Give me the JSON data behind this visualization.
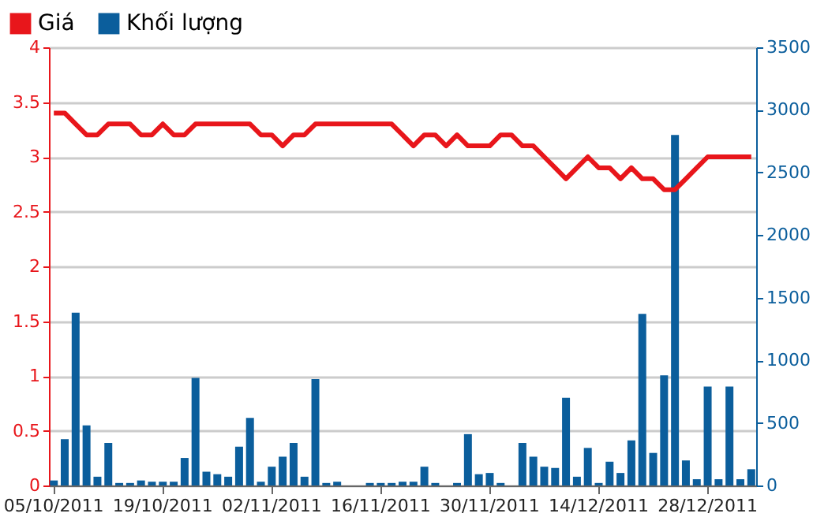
{
  "chart_data": {
    "type": "bar",
    "categories": [
      "05/10/2011",
      null,
      null,
      null,
      null,
      null,
      null,
      null,
      null,
      null,
      "19/10/2011",
      null,
      null,
      null,
      null,
      null,
      null,
      null,
      null,
      null,
      "02/11/2011",
      null,
      null,
      null,
      null,
      null,
      null,
      null,
      null,
      null,
      "16/11/2011",
      null,
      null,
      null,
      null,
      null,
      null,
      null,
      null,
      null,
      "30/11/2011",
      null,
      null,
      null,
      null,
      null,
      null,
      null,
      null,
      null,
      "14/12/2011",
      null,
      null,
      null,
      null,
      null,
      null,
      null,
      null,
      null,
      "28/12/2011",
      null,
      null,
      null,
      null
    ],
    "series": [
      {
        "name": "Giá",
        "type": "line",
        "color": "#e8161b",
        "values": [
          3.4,
          3.4,
          3.3,
          3.2,
          3.2,
          3.3,
          3.3,
          3.3,
          3.2,
          3.2,
          3.3,
          3.2,
          3.2,
          3.3,
          3.3,
          3.3,
          3.3,
          3.3,
          3.3,
          3.2,
          3.2,
          3.1,
          3.2,
          3.2,
          3.3,
          3.3,
          3.3,
          3.3,
          3.3,
          3.3,
          3.3,
          3.3,
          3.2,
          3.1,
          3.2,
          3.2,
          3.1,
          3.2,
          3.1,
          3.1,
          3.1,
          3.2,
          3.2,
          3.1,
          3.1,
          3.0,
          2.9,
          2.8,
          2.9,
          3.0,
          2.9,
          2.9,
          2.8,
          2.9,
          2.8,
          2.8,
          2.7,
          2.7,
          2.8,
          2.9,
          3.0,
          3.0,
          3.0,
          3.0,
          3.0
        ]
      },
      {
        "name": "Khối lượng",
        "axis": "y2",
        "color": "#0b5e9c",
        "values": [
          40,
          370,
          1380,
          480,
          70,
          340,
          20,
          20,
          40,
          30,
          30,
          30,
          220,
          860,
          110,
          90,
          70,
          310,
          540,
          30,
          150,
          230,
          340,
          70,
          850,
          20,
          30,
          0,
          0,
          20,
          20,
          20,
          30,
          30,
          150,
          20,
          0,
          20,
          410,
          90,
          100,
          20,
          0,
          340,
          230,
          150,
          140,
          700,
          70,
          300,
          20,
          190,
          100,
          360,
          1370,
          260,
          880,
          2800,
          200,
          50,
          790,
          50,
          790,
          50,
          130
        ]
      }
    ],
    "ylim": [
      0,
      4
    ],
    "yticks": [
      0,
      0.5,
      1,
      1.5,
      2,
      2.5,
      3,
      3.5,
      4
    ],
    "y2lim": [
      0,
      3500
    ],
    "y2ticks": [
      0,
      500,
      1000,
      1500,
      2000,
      2500,
      3000,
      3500
    ],
    "grid": "y",
    "legend": "top left",
    "marker": "none",
    "line_style": "solid"
  }
}
